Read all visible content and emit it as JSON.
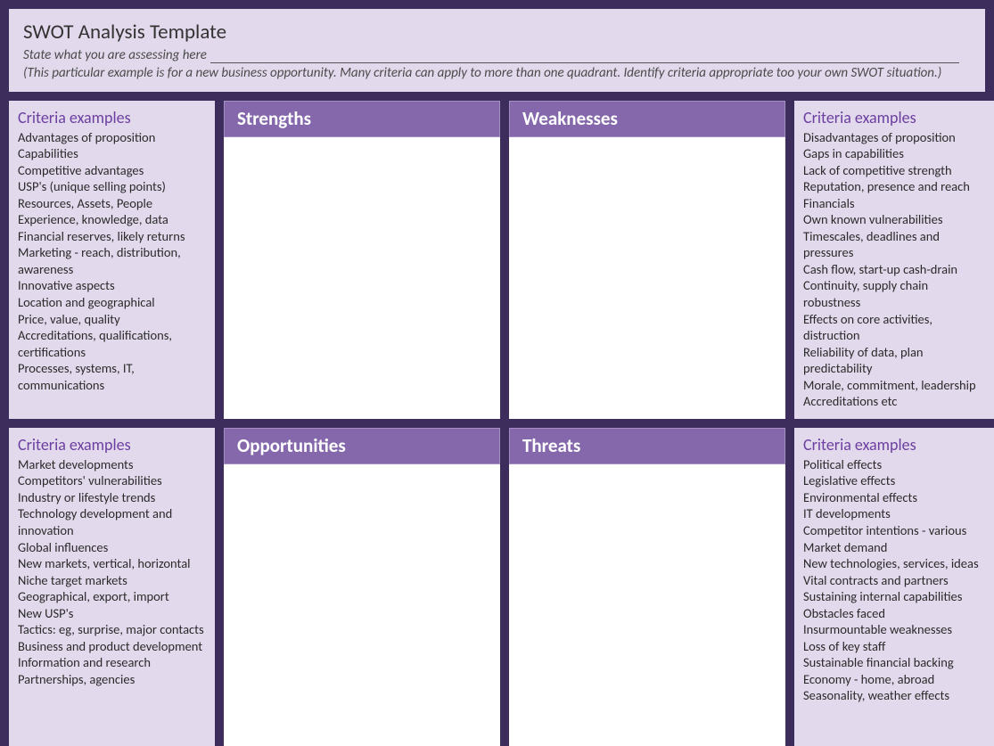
{
  "type": "swot-template",
  "colors": {
    "outer_bg": "#3d2d5c",
    "panel_bg": "#e3d9ec",
    "quadrant_bg": "#ffffff",
    "quadrant_header_bg": "#8468ab",
    "quadrant_header_text": "#ffffff",
    "criteria_title": "#6b3fa0",
    "body_text": "#2a2a2a"
  },
  "header": {
    "title": "SWOT Analysis Template",
    "subtitle": "State what you are assessing here",
    "note": "(This particular example is for a new business opportunity. Many criteria can apply to more than one quadrant. Identify criteria appropriate too your own SWOT situation.)"
  },
  "quadrants": {
    "strengths": {
      "label": "Strengths"
    },
    "weaknesses": {
      "label": "Weaknesses"
    },
    "opportunities": {
      "label": "Opportunities"
    },
    "threats": {
      "label": "Threats"
    }
  },
  "criteria": {
    "strengths": {
      "title": "Criteria examples",
      "items": [
        "Advantages of proposition",
        "Capabilities",
        "Competitive advantages",
        "USP's (unique selling points)",
        "Resources, Assets, People",
        "Experience, knowledge, data",
        "Financial reserves, likely returns",
        "Marketing -  reach, distribution, awareness",
        "Innovative aspects",
        "Location and geographical",
        "Price, value, quality",
        "Accreditations, qualifications, certifications",
        "Processes, systems, IT, communications"
      ]
    },
    "weaknesses": {
      "title": "Criteria examples",
      "items": [
        "Disadvantages of proposition",
        "Gaps in capabilities",
        "Lack of competitive strength",
        "Reputation, presence and reach",
        "Financials",
        "Own known vulnerabilities",
        "Timescales, deadlines and pressures",
        "Cash flow, start-up cash-drain",
        "Continuity, supply chain robustness",
        "Effects on core activities, distruction",
        "Reliability of data, plan predictability",
        "Morale, commitment, leadership",
        "Accreditations etc"
      ]
    },
    "opportunities": {
      "title": "Criteria examples",
      "items": [
        "Market developments",
        "Competitors' vulnerabilities",
        "Industry or lifestyle trends",
        "Technology development and innovation",
        "Global influences",
        "New markets, vertical, horizontal",
        "Niche target markets",
        "Geographical, export, import",
        "New USP's",
        "Tactics: eg, surprise, major contacts",
        "Business and product development",
        "Information and research",
        "Partnerships, agencies"
      ]
    },
    "threats": {
      "title": "Criteria examples",
      "items": [
        "Political effects",
        "Legislative effects",
        "Environmental effects",
        "IT developments",
        "Competitor intentions - various",
        "Market demand",
        "New technologies, services, ideas",
        "Vital contracts and partners",
        "Sustaining internal capabilities",
        "Obstacles faced",
        "Insurmountable weaknesses",
        "Loss of key staff",
        "Sustainable financial backing",
        "Economy - home, abroad",
        "Seasonality, weather effects"
      ]
    }
  }
}
